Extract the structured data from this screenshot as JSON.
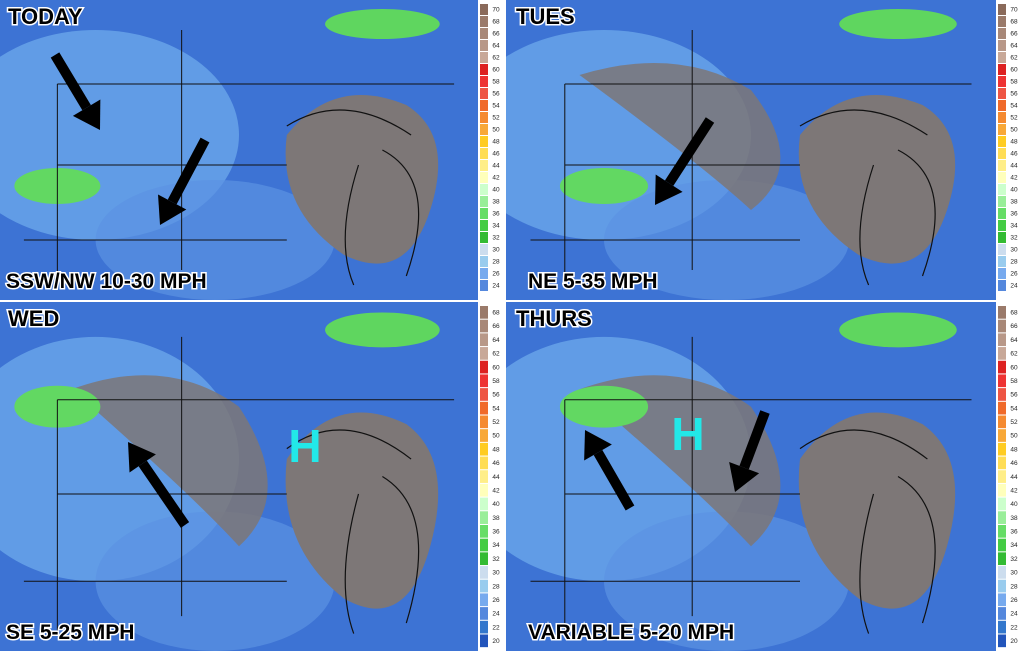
{
  "panels": [
    {
      "title": "TODAY",
      "wind": "SSW/NW 10-30 MPH"
    },
    {
      "title": "TUES",
      "wind": "NE 5-35 MPH"
    },
    {
      "title": "WED",
      "wind": "SE 5-25 MPH",
      "high": "H"
    },
    {
      "title": "THURS",
      "wind": "VARIABLE 5-20 MPH",
      "high": "H"
    }
  ],
  "colorbar": {
    "labels": [
      70,
      68,
      66,
      64,
      62,
      60,
      58,
      56,
      54,
      52,
      50,
      48,
      46,
      44,
      42,
      40,
      38,
      36,
      34,
      32,
      30,
      28,
      26,
      24,
      22,
      20
    ]
  }
}
